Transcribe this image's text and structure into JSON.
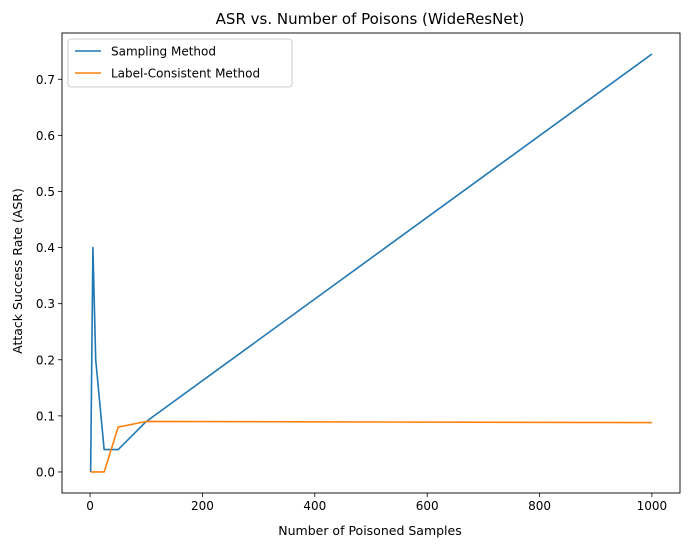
{
  "chart_data": {
    "type": "line",
    "title": "ASR vs. Number of Poisons (WideResNet)",
    "xlabel": "Number of Poisoned Samples",
    "ylabel": "Attack Success Rate (ASR)",
    "xlim": [
      -50,
      1050
    ],
    "ylim": [
      -0.0375,
      0.7825
    ],
    "xticks": [
      0,
      200,
      400,
      600,
      800,
      1000
    ],
    "xtick_labels": [
      "0",
      "200",
      "400",
      "600",
      "800",
      "1000"
    ],
    "yticks": [
      0.0,
      0.1,
      0.2,
      0.3,
      0.4,
      0.5,
      0.6,
      0.7
    ],
    "ytick_labels": [
      "0.0",
      "0.1",
      "0.2",
      "0.3",
      "0.4",
      "0.5",
      "0.6",
      "0.7"
    ],
    "grid": false,
    "legend_position": "upper-left",
    "series": [
      {
        "name": "Sampling Method",
        "color": "#1f77b4",
        "x": [
          1,
          5,
          10,
          25,
          50,
          100,
          1000
        ],
        "y": [
          0.0,
          0.4,
          0.2,
          0.04,
          0.04,
          0.09,
          0.745
        ]
      },
      {
        "name": "Label-Consistent Method",
        "color": "#ff7f0e",
        "x": [
          1,
          5,
          10,
          25,
          50,
          100,
          1000
        ],
        "y": [
          0.0,
          0.0,
          0.0,
          0.0,
          0.08,
          0.09,
          0.088
        ]
      }
    ]
  }
}
